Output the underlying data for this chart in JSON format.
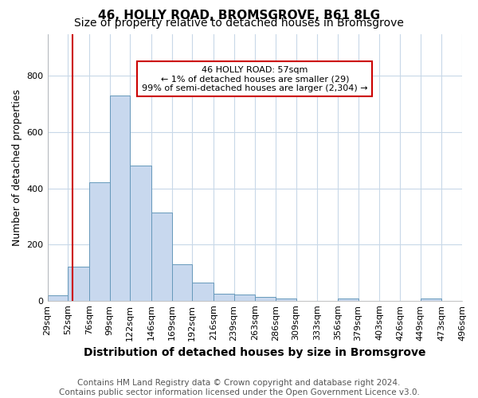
{
  "title": "46, HOLLY ROAD, BROMSGROVE, B61 8LG",
  "subtitle": "Size of property relative to detached houses in Bromsgrove",
  "xlabel": "Distribution of detached houses by size in Bromsgrove",
  "ylabel": "Number of detached properties",
  "footer": "Contains HM Land Registry data © Crown copyright and database right 2024.\nContains public sector information licensed under the Open Government Licence v3.0.",
  "bar_edges": [
    29,
    52,
    76,
    99,
    122,
    146,
    169,
    192,
    216,
    239,
    263,
    286,
    309,
    333,
    356,
    379,
    403,
    426,
    449,
    473,
    496
  ],
  "bar_heights": [
    20,
    122,
    422,
    730,
    480,
    315,
    130,
    65,
    25,
    22,
    12,
    8,
    0,
    0,
    8,
    0,
    0,
    0,
    8,
    0,
    0
  ],
  "bar_color": "#c8d8ee",
  "bar_edge_color": "#6699bb",
  "property_size": 57,
  "red_line_color": "#cc0000",
  "annotation_line1": "46 HOLLY ROAD: 57sqm",
  "annotation_line2": "← 1% of detached houses are smaller (29)",
  "annotation_line3": "99% of semi-detached houses are larger (2,304) →",
  "annotation_box_color": "#ffffff",
  "annotation_box_edge_color": "#cc0000",
  "ylim": [
    0,
    950
  ],
  "xlim_left": 29,
  "xlim_right": 496,
  "background_color": "#ffffff",
  "grid_color": "#c8d8e8",
  "title_fontsize": 11,
  "subtitle_fontsize": 10,
  "xlabel_fontsize": 10,
  "ylabel_fontsize": 9,
  "tick_fontsize": 8,
  "annotation_fontsize": 8,
  "footer_fontsize": 7.5
}
